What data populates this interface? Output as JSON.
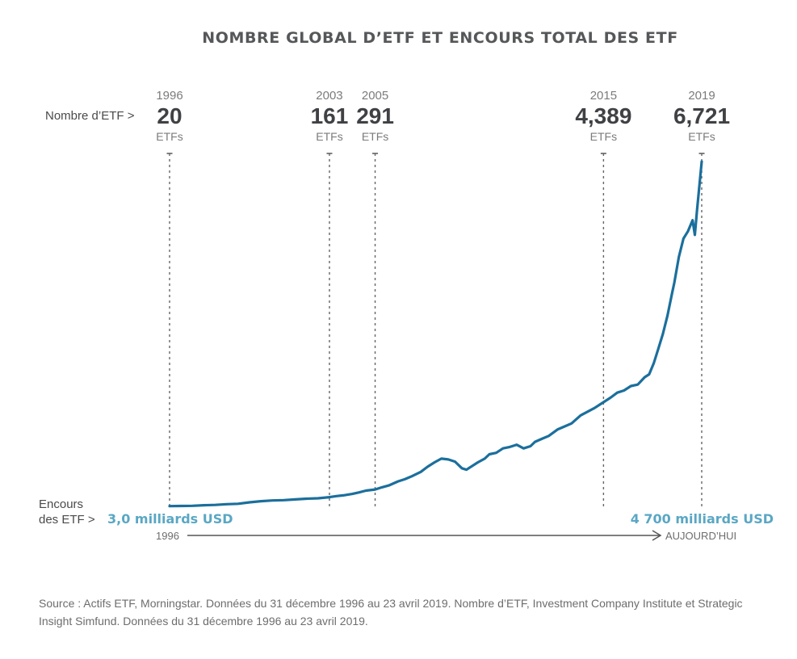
{
  "chart_data": {
    "type": "line",
    "title": "NOMBRE GLOBAL D’ETF ET ENCOURS TOTAL DES ETF",
    "row_label_count": "Nombre d’ETF >",
    "row_label_aum_line1": "Encours",
    "row_label_aum_line2": "des ETF >",
    "milestones": [
      {
        "year": "1996",
        "count": "20",
        "unit": "ETFs",
        "t": 1996.0
      },
      {
        "year": "2003",
        "count": "161",
        "unit": "ETFs",
        "t": 2003.0
      },
      {
        "year": "2005",
        "count": "291",
        "unit": "ETFs",
        "t": 2005.0
      },
      {
        "year": "2015",
        "count": "4,389",
        "unit": "ETFs",
        "t": 2015.0
      },
      {
        "year": "2019",
        "count": "6,721",
        "unit": "ETFs",
        "t": 2019.3
      }
    ],
    "aum_start_label": "3,0 milliards USD",
    "aum_end_label": "4 700 milliards USD",
    "axis_start_label": "1996",
    "axis_end_label": "AUJOURD’HUI",
    "series": [
      {
        "name": "Encours des ETF (milliards USD)",
        "color": "#1b6f9c",
        "x": [
          1996.0,
          1996.5,
          1997.0,
          1997.5,
          1998.0,
          1998.5,
          1999.0,
          1999.5,
          2000.0,
          2000.5,
          2001.0,
          2001.5,
          2002.0,
          2002.5,
          2003.0,
          2003.3,
          2003.6,
          2004.0,
          2004.3,
          2004.6,
          2005.0,
          2005.3,
          2005.6,
          2006.0,
          2006.3,
          2006.6,
          2007.0,
          2007.3,
          2007.6,
          2007.9,
          2008.2,
          2008.5,
          2008.8,
          2009.0,
          2009.2,
          2009.5,
          2009.8,
          2010.0,
          2010.3,
          2010.6,
          2010.9,
          2011.2,
          2011.5,
          2011.8,
          2012.0,
          2012.3,
          2012.6,
          2013.0,
          2013.3,
          2013.6,
          2014.0,
          2014.3,
          2014.6,
          2015.0,
          2015.3,
          2015.6,
          2015.9,
          2016.2,
          2016.5,
          2016.8,
          2017.0,
          2017.2,
          2017.4,
          2017.6,
          2017.8,
          2018.0,
          2018.1,
          2018.3,
          2018.5,
          2018.7,
          2018.9,
          2019.0,
          2019.1,
          2019.3
        ],
        "y": [
          3,
          6,
          8,
          15,
          20,
          30,
          35,
          55,
          70,
          80,
          85,
          95,
          105,
          110,
          125,
          140,
          150,
          170,
          190,
          215,
          230,
          260,
          285,
          340,
          370,
          410,
          470,
          540,
          600,
          650,
          640,
          610,
          520,
          500,
          540,
          600,
          650,
          710,
          730,
          790,
          810,
          840,
          790,
          820,
          880,
          920,
          960,
          1050,
          1090,
          1130,
          1240,
          1290,
          1340,
          1420,
          1480,
          1550,
          1580,
          1640,
          1660,
          1760,
          1800,
          1950,
          2150,
          2350,
          2600,
          2900,
          3050,
          3400,
          3650,
          3750,
          3900,
          3700,
          4050,
          4700
        ]
      }
    ]
  },
  "source": "Source : Actifs ETF, Morningstar. Données du 31 décembre 1996 au 23 avril 2019. Nombre d’ETF, Investment Company Institute et Strategic Insight Simfund. Données du 31 décembre 1996 au 23 avril 2019."
}
